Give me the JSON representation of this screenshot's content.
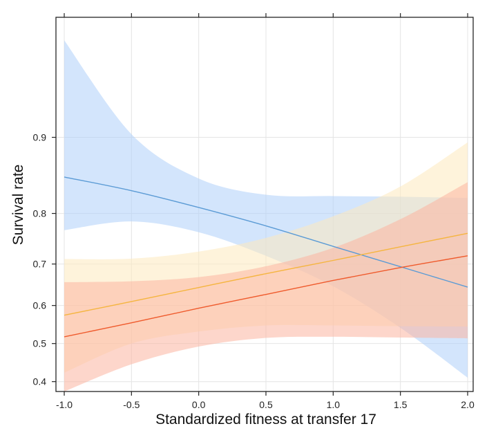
{
  "chart_data": {
    "type": "line",
    "title": "",
    "xlabel": "Standardized fitness at transfer 17",
    "ylabel": "Survival rate",
    "xlim": [
      -1.0,
      2.0
    ],
    "ylim": [
      0.375,
      0.97
    ],
    "y_scale": "logit",
    "grid": true,
    "legend": "none",
    "x_ticks": [
      -1.0,
      -0.5,
      0.0,
      0.5,
      1.0,
      1.5,
      2.0
    ],
    "x_tick_labels": [
      "-1.0",
      "-0.5",
      "0.0",
      "0.5",
      "1.0",
      "1.5",
      "2.0"
    ],
    "y_ticks": [
      0.4,
      0.5,
      0.6,
      0.7,
      0.8,
      0.9
    ],
    "y_tick_labels": [
      "0.4",
      "0.5",
      "0.6",
      "0.7",
      "0.8",
      "0.9"
    ],
    "series": [
      {
        "color": "#5b9bd5",
        "band_color": "#aed0fa",
        "x": [
          -1.0,
          -0.5,
          0.0,
          0.5,
          1.0,
          1.5,
          2.0
        ],
        "y": [
          0.855,
          0.836,
          0.81,
          0.778,
          0.738,
          0.694,
          0.646
        ],
        "lower": [
          0.77,
          0.786,
          0.766,
          0.718,
          0.648,
          0.542,
          0.41
        ],
        "upper": [
          0.962,
          0.903,
          0.853,
          0.83,
          0.828,
          0.827,
          0.825
        ]
      },
      {
        "color": "#f5b53f",
        "band_color": "#fde9bd",
        "x": [
          -1.0,
          -0.5,
          0.0,
          0.5,
          1.0,
          1.5,
          2.0
        ],
        "y": [
          0.575,
          0.61,
          0.645,
          0.678,
          0.708,
          0.737,
          0.764
        ],
        "lower": [
          0.423,
          0.5,
          0.532,
          0.548,
          0.548,
          0.546,
          0.545
        ],
        "upper": [
          0.711,
          0.712,
          0.727,
          0.755,
          0.795,
          0.842,
          0.895
        ]
      },
      {
        "color": "#ef5a2c",
        "band_color": "#fbb4a1",
        "x": [
          -1.0,
          -0.5,
          0.0,
          0.5,
          1.0,
          1.5,
          2.0
        ],
        "y": [
          0.518,
          0.555,
          0.593,
          0.628,
          0.662,
          0.692,
          0.718
        ],
        "lower": [
          0.375,
          0.445,
          0.492,
          0.515,
          0.518,
          0.516,
          0.514
        ],
        "upper": [
          0.658,
          0.66,
          0.67,
          0.695,
          0.735,
          0.79,
          0.848
        ]
      }
    ]
  }
}
